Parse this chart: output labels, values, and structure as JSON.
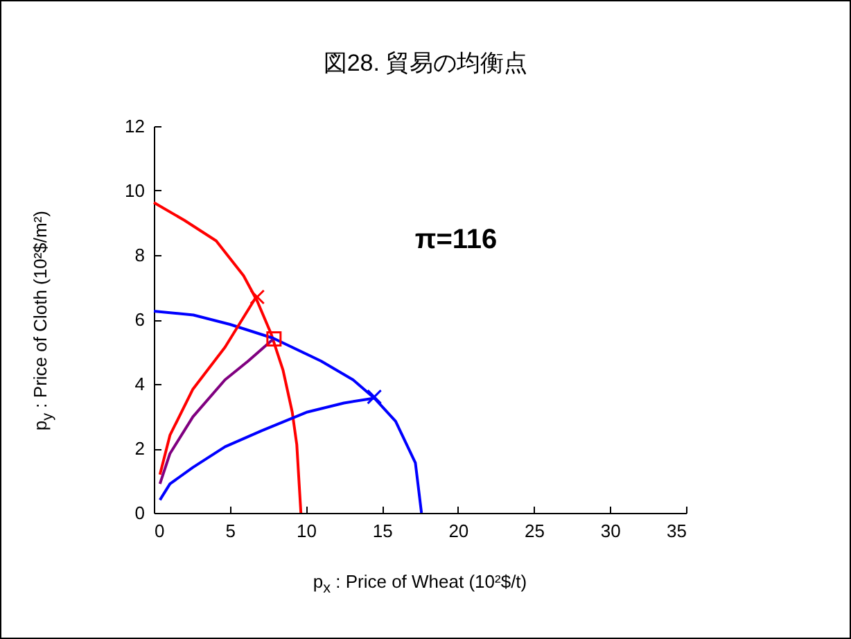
{
  "chart_data": {
    "type": "line",
    "title": "図28. 貿易の均衡点",
    "xlabel": "p$_{x}$ : Price of Wheat (10²$/t)",
    "ylabel": "p$_{y}$ : Price of Cloth (10²$/m²)",
    "annotations": [
      "π=116"
    ],
    "xlim": [
      0,
      35
    ],
    "xticks": [
      0,
      5,
      10,
      15,
      20,
      25,
      30,
      35
    ],
    "ylim": [
      0,
      12
    ],
    "yticks": [
      0,
      2,
      4,
      6,
      8,
      10,
      12
    ],
    "grid": false,
    "marker": "none",
    "line_style": "solid",
    "series": [
      {
        "color": "#ff0000",
        "x": [
          0,
          2,
          4.1,
          5.9,
          6.8,
          7.7,
          8.5,
          9.1,
          9.4,
          9.67
        ],
        "values": [
          9.63,
          9.08,
          8.44,
          7.36,
          6.57,
          5.57,
          4.42,
          3.13,
          2.12,
          0
        ]
      },
      {
        "color": "#0000ff",
        "x": [
          0,
          2.6,
          5,
          7.85,
          11,
          13.1,
          14.5,
          15.9,
          17.2,
          17.6
        ],
        "values": [
          6.26,
          6.14,
          5.85,
          5.42,
          4.71,
          4.13,
          3.56,
          2.84,
          1.55,
          0
        ]
      },
      {
        "color": "#ff0000",
        "x": [
          0.4,
          1.06,
          2.57,
          4.68,
          6.74
        ],
        "values": [
          1.19,
          2.41,
          3.84,
          5.14,
          6.71
        ]
      },
      {
        "color": "#800080",
        "x": [
          0.4,
          1.06,
          2.57,
          4.68,
          6.2,
          7.85
        ],
        "values": [
          0.9,
          1.84,
          2.98,
          4.13,
          4.71,
          5.39
        ]
      },
      {
        "color": "#0000ff",
        "x": [
          0.4,
          1.06,
          2.57,
          4.68,
          7.1,
          10.1,
          12.5,
          14.5
        ],
        "values": [
          0.4,
          0.9,
          1.41,
          2.05,
          2.55,
          3.13,
          3.41,
          3.56
        ]
      },
      {
        "type": "scatter",
        "marker": "cross",
        "color": "#ff0000",
        "x": [
          6.8
        ],
        "values": [
          6.7
        ]
      },
      {
        "type": "scatter",
        "marker": "cross",
        "color": "#0000ff",
        "x": [
          14.5
        ],
        "values": [
          3.6
        ]
      },
      {
        "type": "scatter",
        "marker": "square",
        "color": "#ff0000",
        "x": [
          7.9
        ],
        "values": [
          5.4
        ]
      }
    ]
  }
}
